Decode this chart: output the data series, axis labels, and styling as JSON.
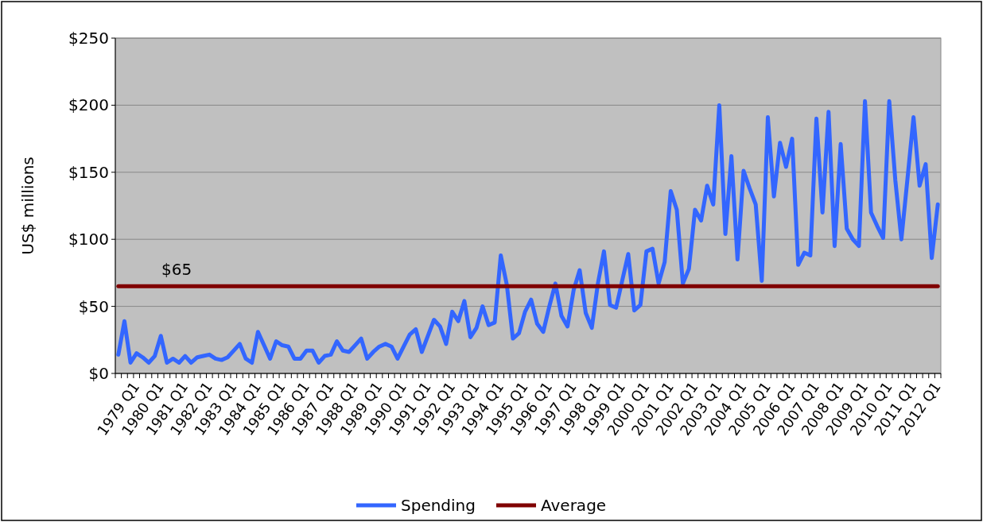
{
  "chart_data": {
    "type": "line",
    "ylabel": "US$ millions",
    "categories": [
      "1979 Q1",
      null,
      null,
      null,
      "1980 Q1",
      null,
      null,
      null,
      "1981 Q1",
      null,
      null,
      null,
      "1982 Q1",
      null,
      null,
      null,
      "1983 Q1",
      null,
      null,
      null,
      "1984 Q1",
      null,
      null,
      null,
      "1985 Q1",
      null,
      null,
      null,
      "1986 Q1",
      null,
      null,
      null,
      "1987 Q1",
      null,
      null,
      null,
      "1988 Q1",
      null,
      null,
      null,
      "1989 Q1",
      null,
      null,
      null,
      "1990 Q1",
      null,
      null,
      null,
      "1991 Q1",
      null,
      null,
      null,
      "1992 Q1",
      null,
      null,
      null,
      "1993 Q1",
      null,
      null,
      null,
      "1994 Q1",
      null,
      null,
      null,
      "1995 Q1",
      null,
      null,
      null,
      "1996 Q1",
      null,
      null,
      null,
      "1997 Q1",
      null,
      null,
      null,
      "1998 Q1",
      null,
      null,
      null,
      "1999 Q1",
      null,
      null,
      null,
      "2000 Q1",
      null,
      null,
      null,
      "2001 Q1",
      null,
      null,
      null,
      "2002 Q1",
      null,
      null,
      null,
      "2003 Q1",
      null,
      null,
      null,
      "2004 Q1",
      null,
      null,
      null,
      "2005 Q1",
      null,
      null,
      null,
      "2006 Q1",
      null,
      null,
      null,
      "2007 Q1",
      null,
      null,
      null,
      "2008 Q1",
      null,
      null,
      null,
      "2009 Q1",
      null,
      null,
      null,
      "2010 Q1",
      null,
      null,
      null,
      "2011 Q1",
      null,
      null,
      null,
      "2012 Q1",
      null,
      null,
      null
    ],
    "series": [
      {
        "name": "Spending",
        "color": "#3366ff",
        "values": [
          14,
          39,
          8,
          15,
          12,
          8,
          13,
          28,
          8,
          11,
          8,
          13,
          8,
          12,
          13,
          14,
          11,
          10,
          12,
          17,
          22,
          11,
          8,
          31,
          21,
          11,
          24,
          21,
          20,
          11,
          11,
          17,
          17,
          8,
          13,
          14,
          24,
          17,
          16,
          21,
          26,
          11,
          16,
          20,
          22,
          20,
          11,
          20,
          29,
          33,
          16,
          28,
          40,
          35,
          22,
          46,
          39,
          54,
          27,
          34,
          50,
          36,
          38,
          88,
          66,
          26,
          30,
          46,
          55,
          37,
          31,
          50,
          67,
          43,
          35,
          62,
          77,
          45,
          34,
          67,
          91,
          51,
          49,
          69,
          89,
          47,
          51,
          91,
          93,
          67,
          83,
          136,
          122,
          67,
          78,
          122,
          114,
          140,
          126,
          200,
          104,
          162,
          85,
          151,
          138,
          126,
          69,
          191,
          132,
          172,
          154,
          175,
          81,
          90,
          88,
          190,
          120,
          195,
          95,
          171,
          108,
          100,
          95,
          203,
          120,
          110,
          101,
          203,
          144,
          100,
          145,
          191,
          140,
          156,
          86,
          126
        ]
      },
      {
        "name": "Average",
        "color": "#800000",
        "values": [
          65,
          65,
          65,
          65,
          65,
          65,
          65,
          65,
          65,
          65,
          65,
          65,
          65,
          65,
          65,
          65,
          65,
          65,
          65,
          65,
          65,
          65,
          65,
          65,
          65,
          65,
          65,
          65,
          65,
          65,
          65,
          65,
          65,
          65,
          65,
          65,
          65,
          65,
          65,
          65,
          65,
          65,
          65,
          65,
          65,
          65,
          65,
          65,
          65,
          65,
          65,
          65,
          65,
          65,
          65,
          65,
          65,
          65,
          65,
          65,
          65,
          65,
          65,
          65,
          65,
          65,
          65,
          65,
          65,
          65,
          65,
          65,
          65,
          65,
          65,
          65,
          65,
          65,
          65,
          65,
          65,
          65,
          65,
          65,
          65,
          65,
          65,
          65,
          65,
          65,
          65,
          65,
          65,
          65,
          65,
          65,
          65,
          65,
          65,
          65,
          65,
          65,
          65,
          65,
          65,
          65,
          65,
          65,
          65,
          65,
          65,
          65,
          65,
          65,
          65,
          65,
          65,
          65,
          65,
          65,
          65,
          65,
          65,
          65,
          65,
          65,
          65,
          65,
          65,
          65,
          65,
          65,
          65,
          65,
          65,
          65
        ]
      }
    ],
    "annotations": [
      {
        "text": "$65",
        "y": 65
      }
    ],
    "ylim": [
      0,
      250
    ],
    "yticks": [
      {
        "value": 0,
        "label": "$0"
      },
      {
        "value": 50,
        "label": "$50"
      },
      {
        "value": 100,
        "label": "$100"
      },
      {
        "value": 150,
        "label": "$150"
      },
      {
        "value": 200,
        "label": "$200"
      },
      {
        "value": 250,
        "label": "$250"
      }
    ],
    "grid": "y",
    "legend": "bottom",
    "marker": "none",
    "line_style": "solid"
  }
}
